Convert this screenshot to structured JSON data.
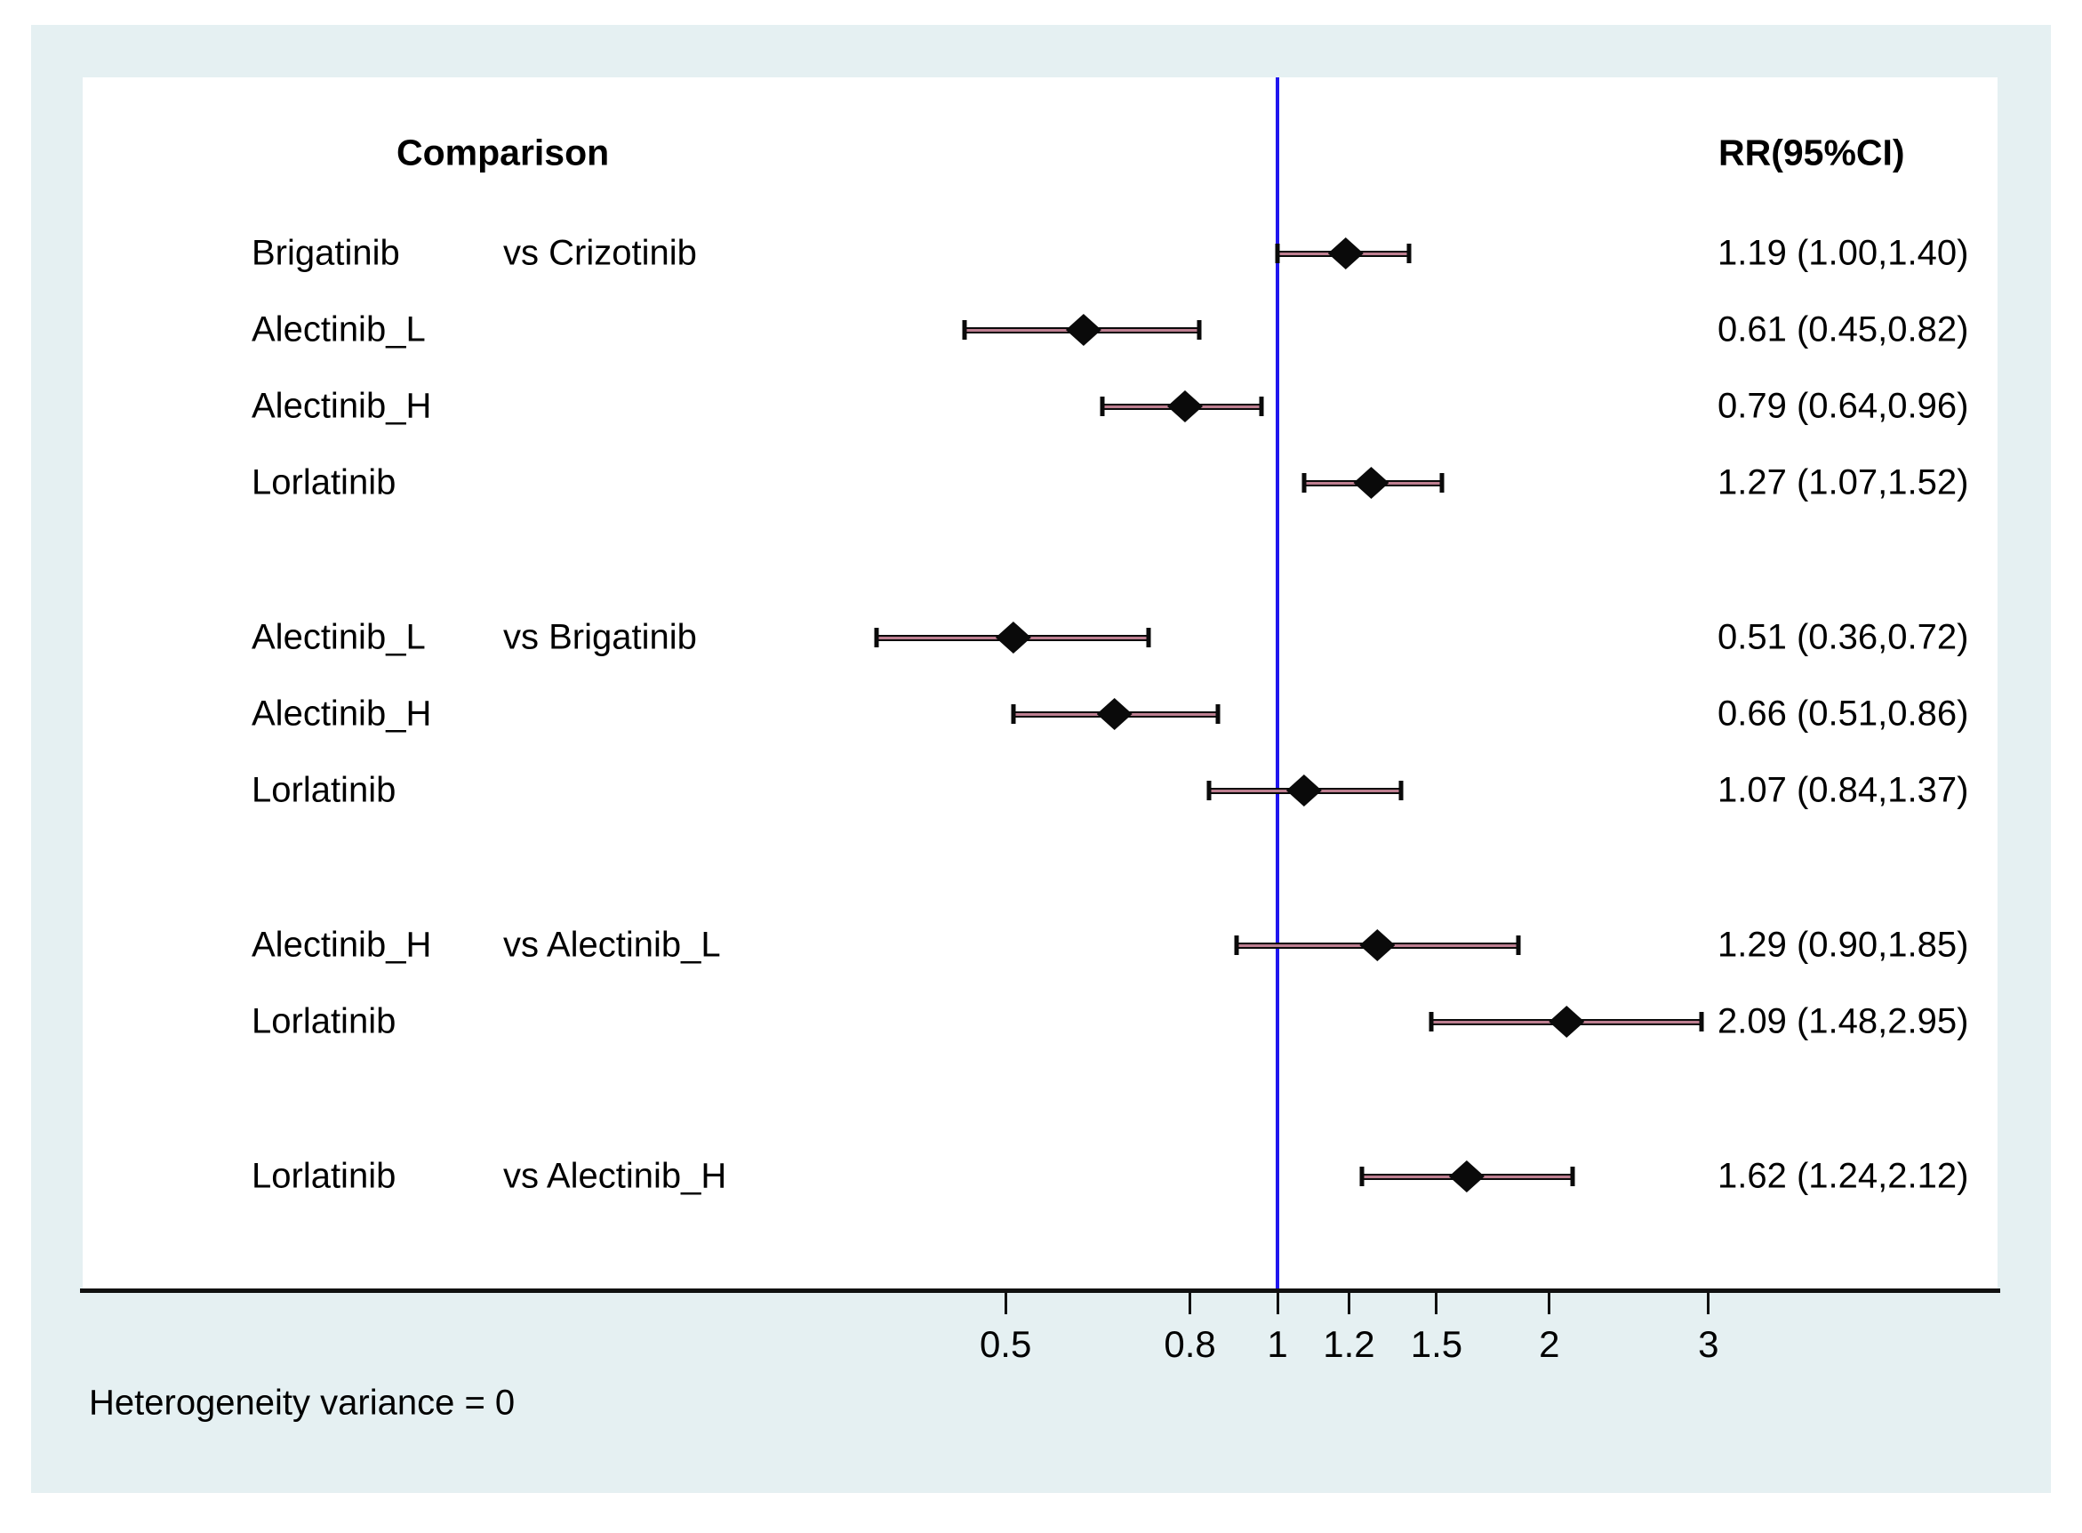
{
  "chart_data": {
    "type": "scatter",
    "subtype": "forest-plot",
    "title_left": "Comparison",
    "title_right": "RR(95%CI)",
    "footnote": "Heterogeneity variance = 0",
    "x_axis": {
      "scale": "log",
      "ticks": [
        0.5,
        0.8,
        1,
        1.2,
        1.5,
        2,
        3
      ],
      "tick_labels": [
        "0.5",
        "0.8",
        "1",
        "1.2",
        "1.5",
        "2",
        "3"
      ],
      "reference_line": 1,
      "grid": false
    },
    "groups": [
      {
        "rows": [
          {
            "treatment": "Brigatinib",
            "comparator": "vs Crizotinib",
            "rr": 1.19,
            "lo": 1.0,
            "hi": 1.4,
            "label": "1.19 (1.00,1.40)"
          },
          {
            "treatment": "Alectinib_L",
            "comparator": "",
            "rr": 0.61,
            "lo": 0.45,
            "hi": 0.82,
            "label": "0.61 (0.45,0.82)"
          },
          {
            "treatment": "Alectinib_H",
            "comparator": "",
            "rr": 0.79,
            "lo": 0.64,
            "hi": 0.96,
            "label": "0.79 (0.64,0.96)"
          },
          {
            "treatment": "Lorlatinib",
            "comparator": "",
            "rr": 1.27,
            "lo": 1.07,
            "hi": 1.52,
            "label": "1.27 (1.07,1.52)"
          }
        ]
      },
      {
        "rows": [
          {
            "treatment": "Alectinib_L",
            "comparator": "vs Brigatinib",
            "rr": 0.51,
            "lo": 0.36,
            "hi": 0.72,
            "label": "0.51 (0.36,0.72)"
          },
          {
            "treatment": "Alectinib_H",
            "comparator": "",
            "rr": 0.66,
            "lo": 0.51,
            "hi": 0.86,
            "label": "0.66 (0.51,0.86)"
          },
          {
            "treatment": "Lorlatinib",
            "comparator": "",
            "rr": 1.07,
            "lo": 0.84,
            "hi": 1.37,
            "label": "1.07 (0.84,1.37)"
          }
        ]
      },
      {
        "rows": [
          {
            "treatment": "Alectinib_H",
            "comparator": "vs Alectinib_L",
            "rr": 1.29,
            "lo": 0.9,
            "hi": 1.85,
            "label": "1.29 (0.90,1.85)"
          },
          {
            "treatment": "Lorlatinib",
            "comparator": "",
            "rr": 2.09,
            "lo": 1.48,
            "hi": 2.95,
            "label": "2.09 (1.48,2.95)"
          }
        ]
      },
      {
        "rows": [
          {
            "treatment": "Lorlatinib",
            "comparator": "vs Alectinib_H",
            "rr": 1.62,
            "lo": 1.24,
            "hi": 2.12,
            "label": "1.62 (1.24,2.12)"
          }
        ]
      }
    ],
    "colors": {
      "panel_background": "#e5f0f2",
      "plot_background": "#ffffff",
      "reference_line": "#2016ee",
      "ci_line_outline": "#0a0a0a",
      "ci_line_core": "#bd7e90",
      "marker": "#0a0a0a",
      "text": "#000000",
      "axis": "#111111"
    }
  }
}
